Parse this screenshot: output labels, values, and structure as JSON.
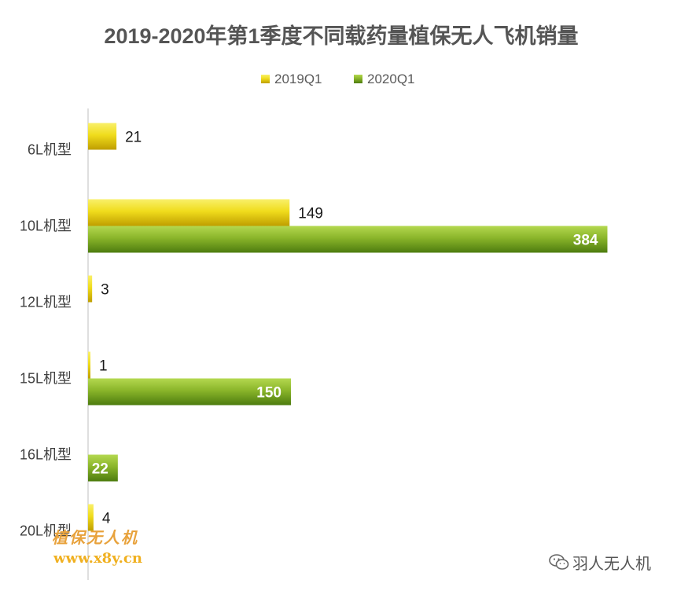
{
  "colors": {
    "yellow_light": "#f7ec2a",
    "yellow_dark": "#c2a200",
    "green_light": "#9cc437",
    "green_dark": "#4d7c0f",
    "title": "#555555",
    "label": "#404040",
    "axis": "#bfbfbf"
  },
  "watermark": {
    "text": "植保无人机",
    "url": "www.x8y.cn"
  },
  "wechat": {
    "icon": "wechat-icon",
    "account": "羽人无人机"
  },
  "chart_data": {
    "type": "bar",
    "orientation": "horizontal",
    "title": "2019-2020年第1季度不同载药量植保无人飞机销量",
    "legend_position": "top",
    "grid": false,
    "categories": [
      "6L机型",
      "10L机型",
      "12L机型",
      "15L机型",
      "16L机型",
      "20L机型"
    ],
    "xlim": [
      0,
      400
    ],
    "series": [
      {
        "name": "2019Q1",
        "values": [
          21,
          149,
          3,
          1,
          0,
          4
        ],
        "labels": [
          "21",
          "149",
          "3",
          "1",
          "",
          "4"
        ],
        "label_position": "outside"
      },
      {
        "name": "2020Q1",
        "values": [
          0,
          384,
          0,
          150,
          22,
          0
        ],
        "labels": [
          "",
          "384",
          "",
          "150",
          "22",
          ""
        ],
        "label_position": "inside"
      }
    ]
  }
}
